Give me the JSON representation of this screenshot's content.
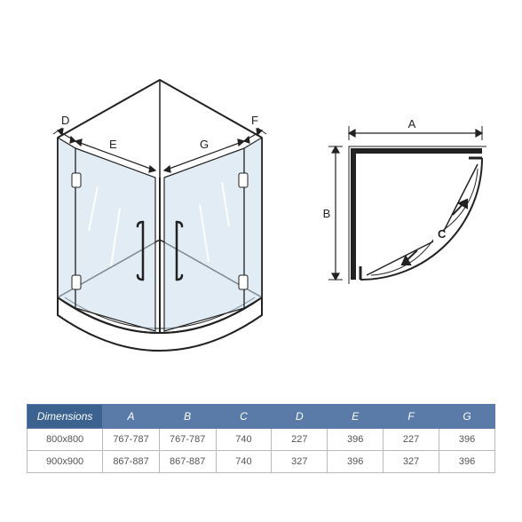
{
  "iso_diagram": {
    "labels": {
      "D": "D",
      "E": "E",
      "G": "G",
      "F": "F"
    },
    "stroke_color": "#222222",
    "glass_fill": "#c8dceb",
    "glass_opacity": 0.55,
    "base_fill": "#ffffff"
  },
  "plan_diagram": {
    "labels": {
      "A": "A",
      "B": "B",
      "C": "C"
    },
    "stroke_color": "#222222",
    "fill_color": "#ffffff"
  },
  "table": {
    "header_bg": "#3c638f",
    "header_alt_bg": "#5a7ba8",
    "border_color": "#5a7ba8",
    "cell_border": "#bbbbbb",
    "columns": [
      "Dimensions",
      "A",
      "B",
      "C",
      "D",
      "E",
      "F",
      "G"
    ],
    "rows": [
      [
        "800x800",
        "767-787",
        "767-787",
        "740",
        "227",
        "396",
        "227",
        "396"
      ],
      [
        "900x900",
        "867-887",
        "867-887",
        "740",
        "327",
        "396",
        "327",
        "396"
      ]
    ],
    "col_widths": [
      "80px",
      "64px",
      "64px",
      "64px",
      "64px",
      "64px",
      "64px",
      "64px"
    ]
  },
  "font": {
    "label_size": 13,
    "table_size": 12
  }
}
